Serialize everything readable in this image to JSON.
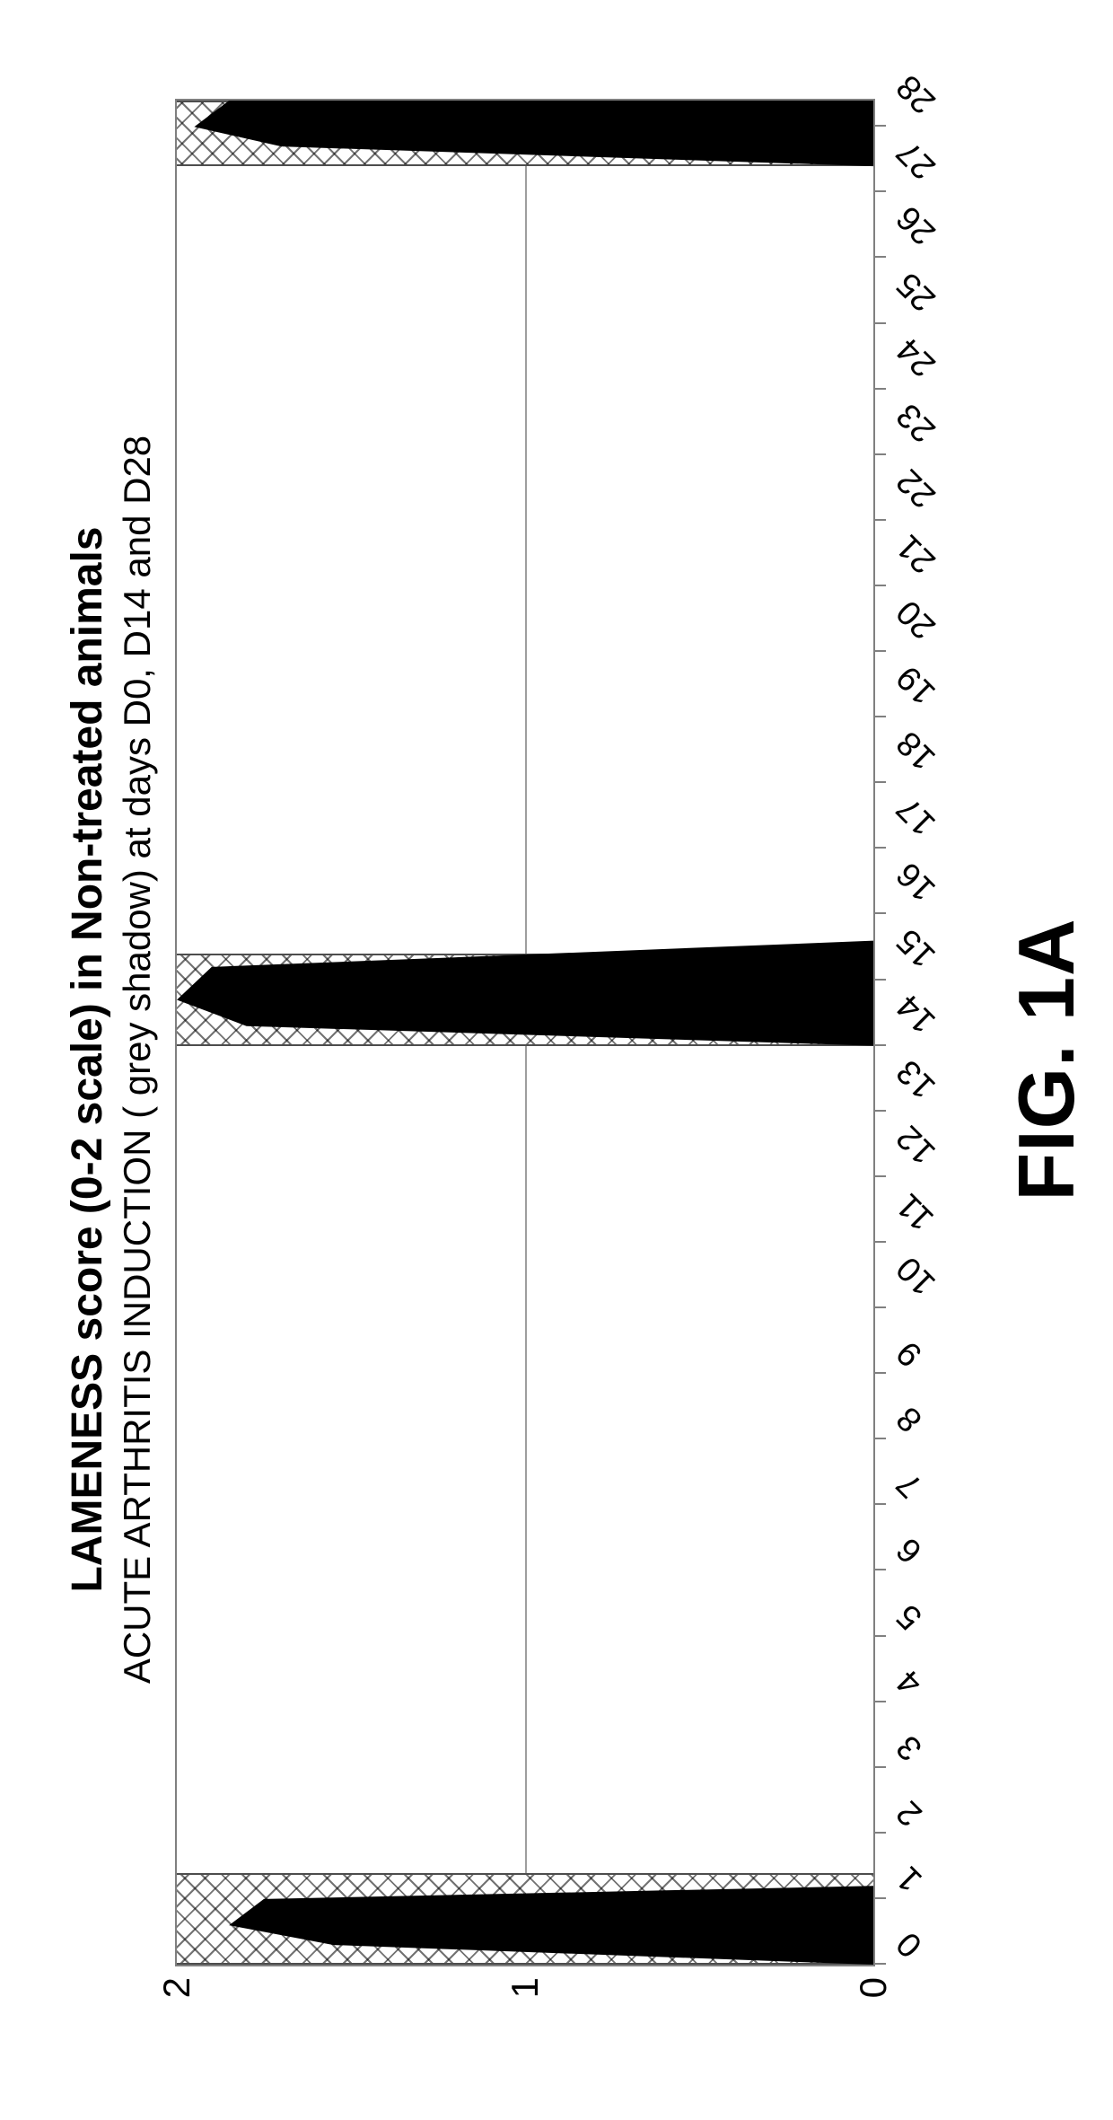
{
  "figure_label": "FIG. 1A",
  "chart": {
    "type": "area",
    "title_main": "LAMENESS score (0-2 scale) in Non-treated animals",
    "title_sub": "ACUTE ARTHRITIS INDUCTION ( grey shadow) at days D0, D14 and D28",
    "title_fontsize_main": 48,
    "title_fontsize_sub": 42,
    "title_color": "#000000",
    "background_color": "#ffffff",
    "border_color": "#808080",
    "grid_color": "#9e9e9e",
    "xlim": [
      0,
      28.4
    ],
    "ylim": [
      0,
      2
    ],
    "ytick_values": [
      0,
      1,
      2
    ],
    "ytick_fontsize": 42,
    "xtick_values": [
      0,
      1,
      2,
      3,
      4,
      5,
      6,
      7,
      8,
      9,
      10,
      11,
      12,
      13,
      14,
      15,
      16,
      17,
      18,
      19,
      20,
      21,
      22,
      23,
      24,
      25,
      26,
      27,
      28
    ],
    "xtick_fontsize": 38,
    "xtick_rotation_deg": -45,
    "induction_bands": [
      {
        "x_start": 0.0,
        "x_end": 1.4
      },
      {
        "x_start": 14.0,
        "x_end": 15.4
      },
      {
        "x_start": 27.4,
        "x_end": 28.4
      }
    ],
    "band_border_color": "#4d4d4d",
    "band_hatch_color": "rgba(0,0,0,0.55)",
    "series": {
      "label": "Lameness score (non-treated)",
      "color": "#000000",
      "fill_opacity": 1.0,
      "points": [
        {
          "x": 0.0,
          "y": 0.0
        },
        {
          "x": 0.3,
          "y": 1.55
        },
        {
          "x": 0.6,
          "y": 1.85
        },
        {
          "x": 1.0,
          "y": 1.75
        },
        {
          "x": 1.2,
          "y": 0.0
        },
        {
          "x": 14.0,
          "y": 0.0
        },
        {
          "x": 14.3,
          "y": 1.8
        },
        {
          "x": 14.7,
          "y": 2.0
        },
        {
          "x": 15.2,
          "y": 1.9
        },
        {
          "x": 15.6,
          "y": 0.0
        },
        {
          "x": 27.4,
          "y": 0.0
        },
        {
          "x": 27.7,
          "y": 1.7
        },
        {
          "x": 28.0,
          "y": 1.95
        },
        {
          "x": 28.4,
          "y": 1.85
        }
      ]
    }
  }
}
